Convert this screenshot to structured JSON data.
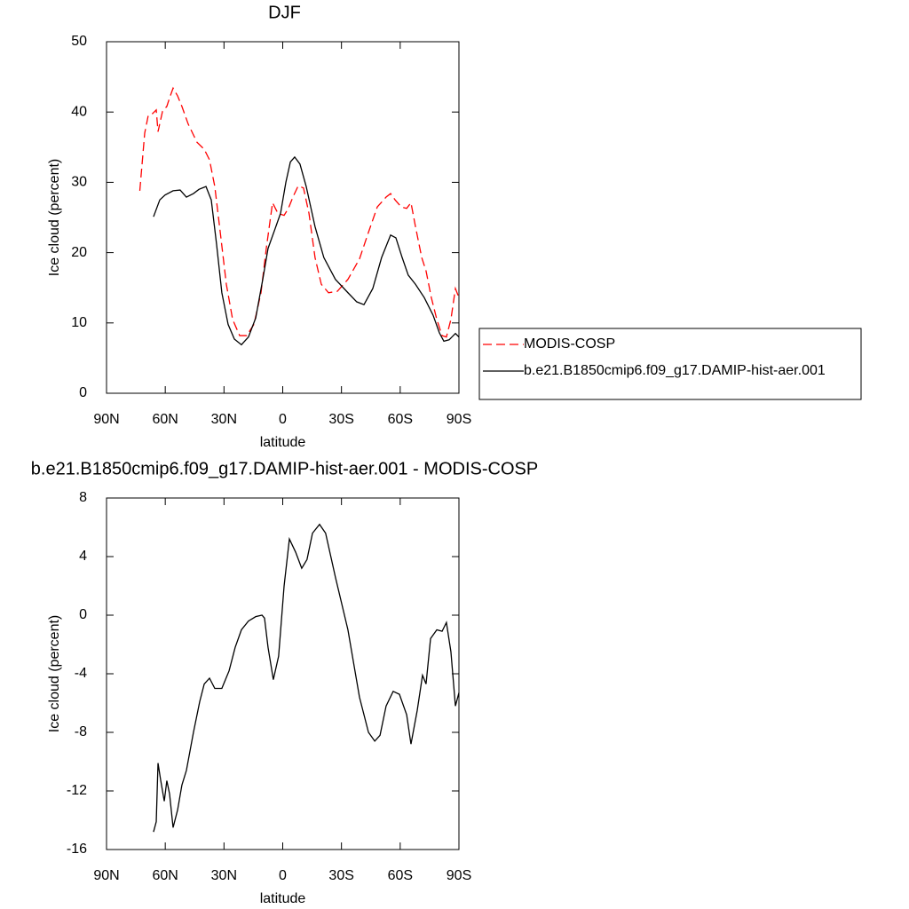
{
  "chart_data": [
    {
      "type": "line",
      "title": "DJF",
      "xlabel": "latitude",
      "ylabel": "Ice cloud (percent)",
      "xlim": [
        90,
        -90
      ],
      "ylim": [
        0,
        50
      ],
      "xticks": [
        {
          "value": 90,
          "label": "90N"
        },
        {
          "value": 60,
          "label": "60N"
        },
        {
          "value": 30,
          "label": "30N"
        },
        0,
        {
          "value": -30,
          "label": "30S"
        },
        {
          "value": -60,
          "label": "60S"
        },
        {
          "value": -90,
          "label": "90S"
        }
      ],
      "yticks": [
        0,
        10,
        20,
        30,
        40,
        50
      ],
      "legend": "right",
      "series": [
        {
          "name": "MODIS-COSP",
          "color": "#ff0000",
          "dash": "dashed",
          "x": [
            73,
            70.5,
            68.7,
            66.4,
            64.6,
            63.7,
            61.4,
            59.2,
            57.8,
            56,
            53.7,
            51.5,
            48.3,
            43.8,
            40.1,
            37.4,
            34.7,
            32,
            28.8,
            25.6,
            22,
            18.4,
            14.7,
            11.1,
            8.4,
            5.2,
            2.5,
            -0.7,
            -2.9,
            -5.2,
            -7.9,
            -10.6,
            -13.4,
            -16.5,
            -19.7,
            -23.4,
            -27.9,
            -33.3,
            -39.2,
            -43.8,
            -48.3,
            -52.8,
            -55.1,
            -57.4,
            -60.5,
            -63.3,
            -65.5,
            -67.8,
            -71,
            -73.2,
            -75.9,
            -78.7,
            -81.4,
            -83.6,
            -85.9,
            -88.2,
            -90
          ],
          "values": [
            28.8,
            37,
            39.5,
            39.8,
            40.3,
            37.2,
            40.1,
            40.8,
            42,
            43.4,
            42.3,
            40.8,
            38.3,
            35.7,
            34.7,
            33.2,
            29.4,
            23.1,
            15.5,
            10.5,
            8.2,
            8.2,
            9.8,
            14.3,
            20.6,
            27.1,
            25.6,
            25.3,
            26.3,
            27.9,
            29.5,
            29.2,
            25.6,
            19.3,
            15.5,
            14.3,
            14.5,
            16.2,
            19.1,
            22.9,
            26.5,
            27.9,
            28.4,
            27.5,
            26.5,
            26.3,
            27.1,
            23.7,
            19.3,
            17.4,
            13.6,
            10.5,
            8.2,
            8,
            10.5,
            14.9,
            13.6
          ]
        },
        {
          "name": "b.e21.B1850cmip6.f09_g17.DAMIP-hist-aer.001",
          "color": "#000000",
          "dash": "solid",
          "x": [
            66,
            62.8,
            60.1,
            56,
            52.4,
            49.2,
            45.6,
            42.8,
            39.2,
            36.5,
            33.8,
            31.1,
            27.9,
            24.7,
            21.1,
            17.5,
            13.8,
            10.2,
            7.5,
            3.9,
            1.1,
            -1.6,
            -3.9,
            -6.1,
            -8.8,
            -12,
            -16.5,
            -21,
            -26.9,
            -33.3,
            -37.8,
            -41.5,
            -46,
            -50.5,
            -55.1,
            -57.8,
            -61,
            -64.1,
            -67.8,
            -72.3,
            -76.8,
            -80,
            -82.3,
            -85,
            -88.2,
            -90
          ],
          "values": [
            25.1,
            27.5,
            28.2,
            28.8,
            28.9,
            27.9,
            28.4,
            29,
            29.4,
            27.5,
            21.2,
            14.3,
            9.8,
            7.7,
            6.9,
            8,
            10.7,
            16.2,
            20.6,
            23.4,
            25.6,
            30,
            32.9,
            33.6,
            32.6,
            29.4,
            23.7,
            19.3,
            16.2,
            14.3,
            13,
            12.6,
            14.9,
            19.3,
            22.5,
            22.1,
            19.3,
            16.8,
            15.5,
            13.6,
            11.1,
            8.6,
            7.4,
            7.6,
            8.5,
            8
          ]
        }
      ]
    },
    {
      "type": "line",
      "title": "b.e21.B1850cmip6.f09_g17.DAMIP-hist-aer.001 - MODIS-COSP",
      "xlabel": "latitude",
      "ylabel": "Ice cloud (percent)",
      "xlim": [
        90,
        -90
      ],
      "ylim": [
        -16,
        8
      ],
      "xticks": [
        {
          "value": 90,
          "label": "90N"
        },
        {
          "value": 60,
          "label": "60N"
        },
        {
          "value": 30,
          "label": "30N"
        },
        0,
        {
          "value": -30,
          "label": "30S"
        },
        {
          "value": -60,
          "label": "60S"
        },
        {
          "value": -90,
          "label": "90S"
        }
      ],
      "yticks": [
        -16,
        -12,
        -8,
        -4,
        0,
        4,
        8
      ],
      "series": [
        {
          "color": "#000000",
          "dash": "solid",
          "x": [
            66,
            64.6,
            63.7,
            62.3,
            60.5,
            59.2,
            57.8,
            56,
            53.7,
            51.5,
            49.2,
            45.6,
            42.4,
            40.1,
            37.4,
            34.7,
            31.1,
            27.4,
            24.3,
            21.1,
            17.5,
            13.8,
            10.6,
            9.3,
            7.5,
            4.8,
            2.1,
            -0.7,
            -3.4,
            -6.6,
            -9.7,
            -12.4,
            -15.2,
            -18.8,
            -21.9,
            -26.9,
            -33.3,
            -39.2,
            -43.8,
            -47,
            -49.7,
            -52.8,
            -56.4,
            -59.6,
            -63.3,
            -65.5,
            -68.7,
            -71.4,
            -73.2,
            -75.5,
            -78.7,
            -81.4,
            -83.6,
            -85.9,
            -88.2,
            -90
          ],
          "values": [
            -14.8,
            -14.1,
            -10.1,
            -11.3,
            -12.7,
            -11.3,
            -12.2,
            -14.5,
            -13.3,
            -11.6,
            -10.6,
            -8,
            -5.9,
            -4.7,
            -4.3,
            -5,
            -5,
            -3.8,
            -2.2,
            -1,
            -0.4,
            -0.1,
            0,
            -0.2,
            -2.2,
            -4.4,
            -2.8,
            2,
            5.2,
            4.3,
            3.2,
            3.8,
            5.6,
            6.2,
            5.6,
            2.6,
            -1,
            -5.6,
            -8,
            -8.6,
            -8.2,
            -6.2,
            -5.2,
            -5.4,
            -6.8,
            -8.8,
            -6.5,
            -4.1,
            -4.7,
            -1.6,
            -1,
            -1.1,
            -0.5,
            -2.5,
            -6.2,
            -5.3
          ]
        }
      ]
    }
  ]
}
